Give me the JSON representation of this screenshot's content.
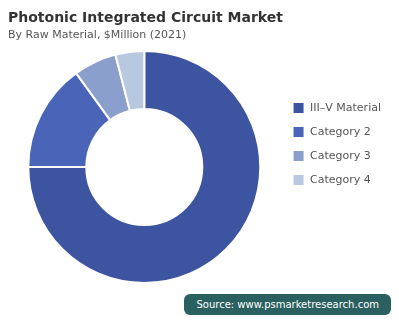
{
  "chart_data": {
    "type": "doughnut",
    "title": "Photonic Integrated Circuit Market",
    "subtitle": "By Raw Material, $Million (2021)",
    "categories": [
      "III–V Material",
      "Category 2",
      "Category 3",
      "Category 4"
    ],
    "values": [
      75,
      15,
      6,
      4
    ],
    "colors": [
      "#3d55a0",
      "#4a65b8",
      "#8a9fcc",
      "#b8c8e0"
    ],
    "legend": "right",
    "annotations": [
      "Source: www.psmarketresearch.com"
    ]
  }
}
